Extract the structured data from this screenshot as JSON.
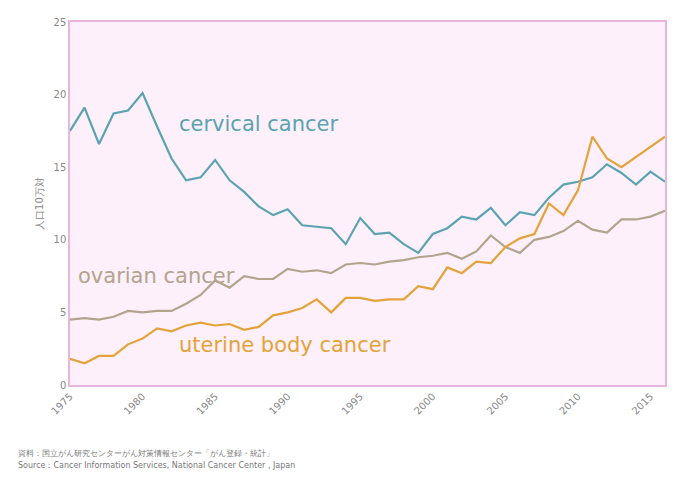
{
  "chart_data": {
    "type": "line",
    "y_label": "人口10万対",
    "x": [
      1975,
      1976,
      1977,
      1978,
      1979,
      1980,
      1981,
      1982,
      1983,
      1984,
      1985,
      1986,
      1987,
      1988,
      1989,
      1990,
      1991,
      1992,
      1993,
      1994,
      1995,
      1996,
      1997,
      1998,
      1999,
      2000,
      2001,
      2002,
      2003,
      2004,
      2005,
      2006,
      2007,
      2008,
      2009,
      2010,
      2011,
      2012,
      2013,
      2014,
      2015,
      2016
    ],
    "series": [
      {
        "name": "cervical cancer",
        "color": "#5ba3b0",
        "values": [
          17.5,
          19.1,
          16.6,
          18.7,
          18.9,
          20.1,
          17.8,
          15.6,
          14.1,
          14.3,
          15.5,
          14.1,
          13.3,
          12.3,
          11.7,
          12.1,
          11.0,
          10.9,
          10.8,
          9.7,
          11.5,
          10.4,
          10.5,
          9.7,
          9.1,
          10.4,
          10.8,
          11.6,
          11.4,
          12.2,
          11.0,
          11.9,
          11.7,
          12.9,
          13.8,
          14.0,
          14.3,
          15.2,
          14.6,
          13.8,
          14.7,
          14.0
        ]
      },
      {
        "name": "ovarian cancer",
        "color": "#b3a48d",
        "values": [
          4.5,
          4.6,
          4.5,
          4.7,
          5.1,
          5.0,
          5.1,
          5.1,
          5.6,
          6.2,
          7.2,
          6.7,
          7.5,
          7.3,
          7.3,
          8.0,
          7.8,
          7.9,
          7.7,
          8.3,
          8.4,
          8.3,
          8.5,
          8.6,
          8.8,
          8.9,
          9.1,
          8.7,
          9.2,
          10.3,
          9.5,
          9.1,
          10.0,
          10.2,
          10.6,
          11.3,
          10.7,
          10.5,
          11.4,
          11.4,
          11.6,
          12.0
        ]
      },
      {
        "name": "uterine body cancer",
        "color": "#e3a33a",
        "values": [
          1.8,
          1.5,
          2.0,
          2.0,
          2.8,
          3.2,
          3.9,
          3.7,
          4.1,
          4.3,
          4.1,
          4.2,
          3.8,
          4.0,
          4.8,
          5.0,
          5.3,
          5.9,
          5.0,
          6.0,
          6.0,
          5.8,
          5.9,
          5.9,
          6.8,
          6.6,
          8.1,
          7.7,
          8.5,
          8.4,
          9.5,
          10.1,
          10.4,
          12.5,
          11.7,
          13.4,
          17.1,
          15.6,
          15.0,
          15.7,
          16.4,
          17.1
        ]
      }
    ],
    "xlim": [
      1975,
      2016
    ],
    "xticks": [
      1975,
      1980,
      1985,
      1990,
      1995,
      2000,
      2005,
      2010,
      2015
    ],
    "ylim": [
      0,
      25
    ],
    "yticks": [
      0,
      5,
      10,
      15,
      20,
      25
    ],
    "grid": false,
    "line_style": "solid",
    "annotations": [
      "資料：国立がん研究センターがん対策情報センター「がん登録・統計」",
      "Source：Cancer Information Services, National Cancer Center , Japan"
    ]
  }
}
